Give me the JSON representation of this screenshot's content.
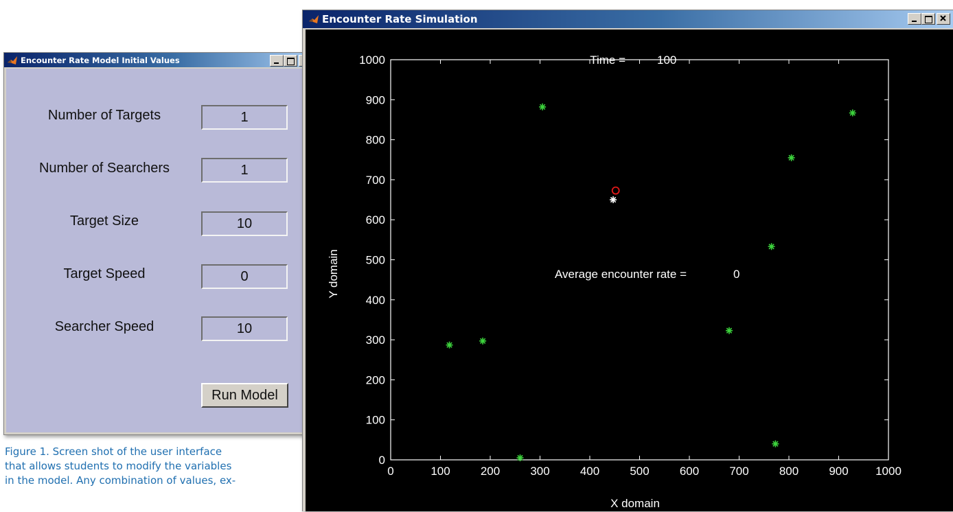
{
  "left_window": {
    "title": "Encounter Rate Model Initial Values",
    "fields": [
      {
        "label": "Number of Targets",
        "value": "1"
      },
      {
        "label": "Number of Searchers",
        "value": "1"
      },
      {
        "label": "Target Size",
        "value": "10"
      },
      {
        "label": "Target Speed",
        "value": "0"
      },
      {
        "label": "Searcher Speed",
        "value": "10"
      }
    ],
    "run_button_label": "Run Model",
    "background_color": "#b9bad8"
  },
  "right_window": {
    "title": "Encounter Rate Simulation",
    "background_color": "#000000"
  },
  "chart_data": {
    "type": "scatter",
    "title_label": "Time =",
    "title_value": "100",
    "annotation_label": "Average encounter rate =",
    "annotation_value": "0",
    "xlabel": "X domain",
    "ylabel": "Y domain",
    "xlim": [
      0,
      1000
    ],
    "ylim": [
      0,
      1000
    ],
    "xticks": [
      "0",
      "100",
      "200",
      "300",
      "400",
      "500",
      "600",
      "700",
      "800",
      "900",
      "1000"
    ],
    "yticks": [
      "0",
      "100",
      "200",
      "300",
      "400",
      "500",
      "600",
      "700",
      "800",
      "900",
      "1000"
    ],
    "grid": false,
    "series": [
      {
        "marker": "star",
        "color": "#3cd23c",
        "points": [
          {
            "x": 118,
            "y": 287
          },
          {
            "x": 185,
            "y": 297
          },
          {
            "x": 260,
            "y": 5
          },
          {
            "x": 305,
            "y": 882
          },
          {
            "x": 680,
            "y": 323
          },
          {
            "x": 765,
            "y": 533
          },
          {
            "x": 773,
            "y": 40
          },
          {
            "x": 805,
            "y": 755
          },
          {
            "x": 928,
            "y": 867
          }
        ]
      },
      {
        "marker": "star",
        "color": "#ffffff",
        "points": [
          {
            "x": 447,
            "y": 650
          }
        ]
      },
      {
        "marker": "circle",
        "color": "#e01818",
        "points": [
          {
            "x": 452,
            "y": 673
          }
        ]
      }
    ]
  },
  "caption": {
    "lines": [
      "Figure 1. Screen shot of the user interface",
      "that allows students to modify the variables",
      "in the model. Any combination of values, ex-"
    ]
  }
}
